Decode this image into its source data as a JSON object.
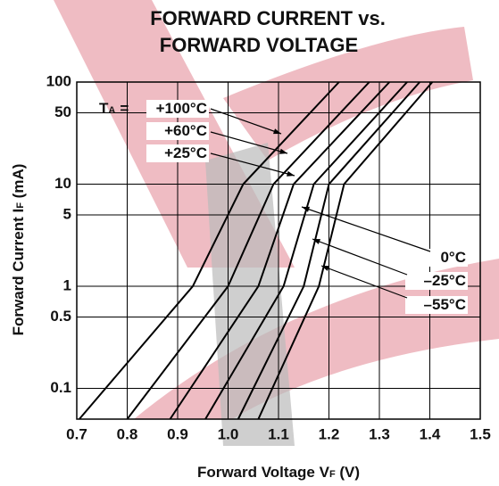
{
  "chart_data": {
    "type": "line",
    "title": [
      "FORWARD CURRENT vs.",
      "FORWARD VOLTAGE"
    ],
    "xlabel": [
      "Forward Voltage  V",
      "F",
      " (V)"
    ],
    "ylabel": [
      "Forward Current  I",
      "F",
      " (mA)"
    ],
    "temperature_label": [
      "T",
      "A",
      "="
    ],
    "xlim": [
      0.7,
      1.5
    ],
    "xticks": [
      0.7,
      0.8,
      0.9,
      {
        "value": 1,
        "label": "1.0"
      },
      1.1,
      1.2,
      1.3,
      1.4,
      1.5
    ],
    "ylim": [
      0.05,
      100
    ],
    "yticks": [
      100,
      50,
      10,
      5,
      1,
      0.5,
      0.1
    ],
    "log_y": true,
    "grid": true,
    "series": [
      {
        "name": "+100°C",
        "color": "#000000",
        "x": [
          0.705,
          0.93,
          1.03,
          1.22
        ],
        "values": [
          0.05,
          1,
          10,
          100
        ]
      },
      {
        "name": "+60°C",
        "color": "#000000",
        "x": [
          0.8,
          1.0,
          1.09,
          1.28
        ],
        "values": [
          0.05,
          1,
          10,
          100
        ]
      },
      {
        "name": "+25°C",
        "color": "#000000",
        "x": [
          0.885,
          1.06,
          1.13,
          1.32
        ],
        "values": [
          0.05,
          1,
          10,
          100
        ]
      },
      {
        "name": "0°C",
        "color": "#000000",
        "x": [
          0.955,
          1.11,
          1.17,
          1.355
        ],
        "values": [
          0.05,
          1,
          10,
          100
        ]
      },
      {
        "name": "–25°C",
        "color": "#000000",
        "x": [
          1.02,
          1.15,
          1.2,
          1.38
        ],
        "values": [
          0.05,
          1,
          10,
          100
        ]
      },
      {
        "name": "–55°C",
        "color": "#000000",
        "x": [
          1.06,
          1.18,
          1.23,
          1.405
        ],
        "values": [
          0.05,
          1,
          10,
          100
        ]
      }
    ]
  }
}
